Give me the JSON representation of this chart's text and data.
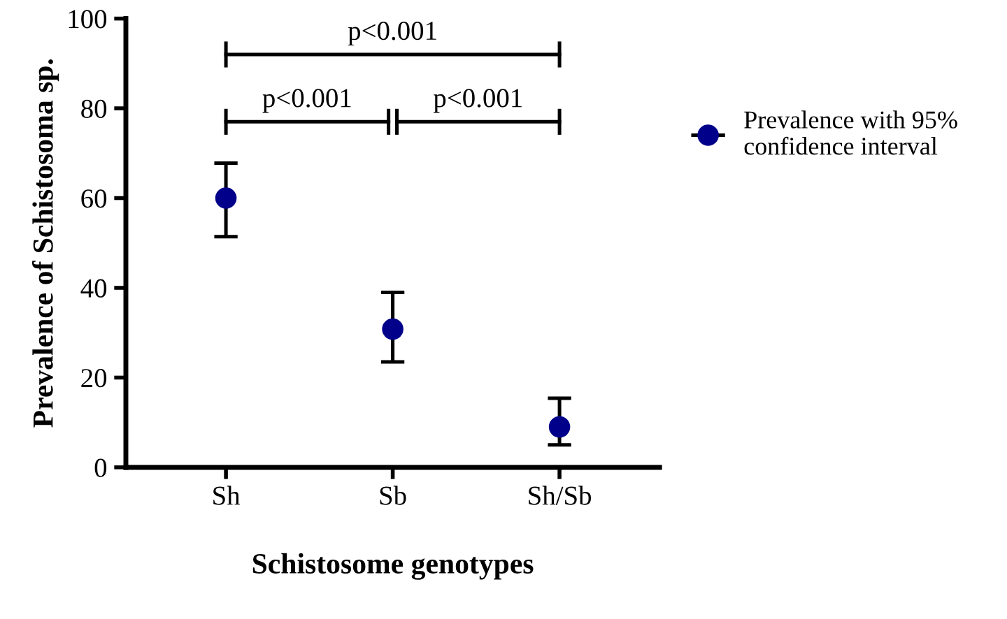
{
  "chart_data": {
    "type": "scatter",
    "xlabel": "Schistosome genotypes",
    "ylabel": "Prevalence of Schistosoma sp.",
    "categories": [
      "Sh",
      "Sb",
      "Sh/Sb"
    ],
    "series": [
      {
        "name": "Prevalence with 95%\nconfidence interval",
        "color": "#00008b",
        "values": [
          60,
          30.8,
          9.0
        ],
        "errors": [
          [
            51.4,
            67.8
          ],
          [
            23.5,
            39.0
          ],
          [
            5.0,
            15.4
          ]
        ]
      }
    ],
    "ylim": [
      0,
      100
    ],
    "yticks": [
      0,
      20,
      40,
      60,
      80,
      100
    ],
    "annotations": [
      "p<0.001",
      "p<0.001",
      "p<0.001"
    ],
    "marker": "circle",
    "legend": "right",
    "grid": false
  }
}
